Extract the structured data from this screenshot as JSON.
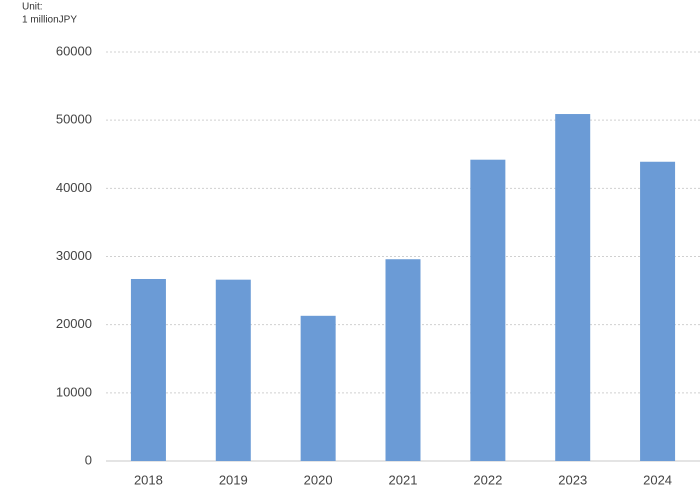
{
  "chart_data": {
    "type": "bar",
    "unit_label": [
      "Unit:",
      "1 millionJPY"
    ],
    "categories": [
      "2018",
      "2019",
      "2020",
      "2021",
      "2022",
      "2023",
      "2024"
    ],
    "values": [
      26700,
      26600,
      21300,
      29600,
      44200,
      50900,
      43900
    ],
    "color": "#6b9bd6",
    "ylim": [
      0,
      60000
    ],
    "yticks": [
      0,
      10000,
      20000,
      30000,
      40000,
      50000,
      60000
    ],
    "grid": true
  }
}
